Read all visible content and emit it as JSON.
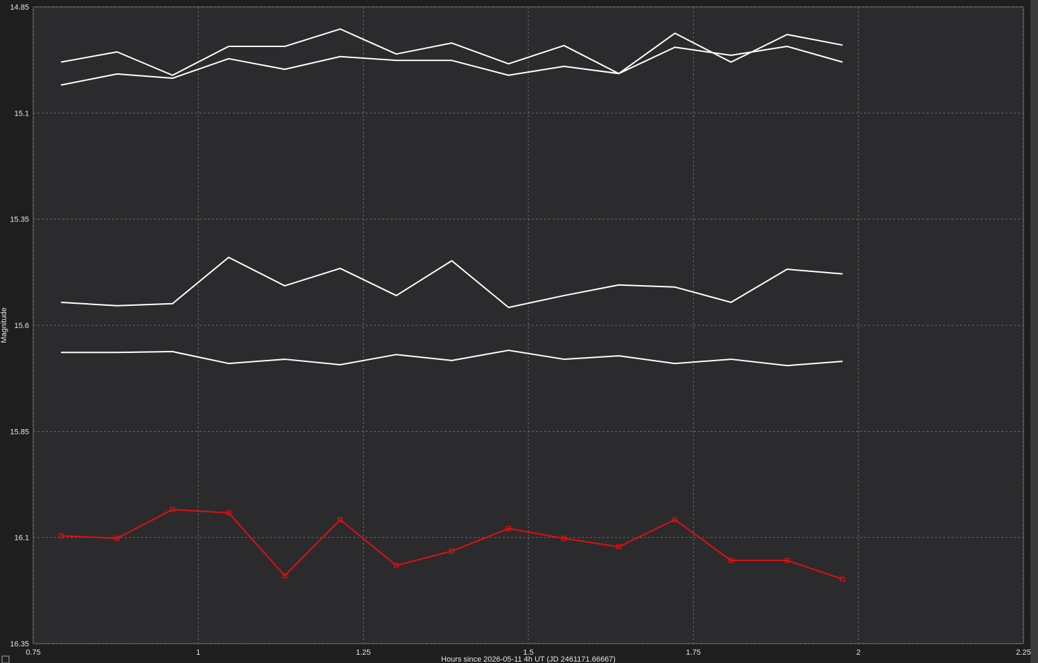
{
  "chart_data": {
    "type": "line",
    "x_label": "Hours since 2026-05-11 4h UT (JD 2461171.66667)",
    "y_label": "Magnitude",
    "x": [
      0.792,
      0.877,
      0.961,
      1.046,
      1.131,
      1.215,
      1.3,
      1.384,
      1.47,
      1.554,
      1.637,
      1.722,
      1.807,
      1.892,
      1.976
    ],
    "series": [
      {
        "color": "#ffffff",
        "values": [
          14.98,
          14.956,
          15.011,
          14.943,
          14.943,
          14.902,
          14.961,
          14.935,
          14.984,
          14.941,
          15.007,
          14.912,
          14.98,
          14.915,
          14.94
        ]
      },
      {
        "color": "#ffffff",
        "values": [
          15.034,
          15.008,
          15.018,
          14.972,
          14.997,
          14.967,
          14.976,
          14.976,
          15.011,
          14.99,
          15.007,
          14.945,
          14.964,
          14.943,
          14.98
        ]
      },
      {
        "color": "#ffffff",
        "values": [
          15.546,
          15.554,
          15.549,
          15.44,
          15.507,
          15.466,
          15.53,
          15.448,
          15.558,
          15.53,
          15.505,
          15.51,
          15.546,
          15.468,
          15.479
        ]
      },
      {
        "color": "#ffffff",
        "values": [
          15.664,
          15.664,
          15.662,
          15.69,
          15.68,
          15.693,
          15.669,
          15.683,
          15.659,
          15.68,
          15.672,
          15.69,
          15.68,
          15.695,
          15.685
        ]
      },
      {
        "color": "#e01010",
        "markers": true,
        "values": [
          16.096,
          16.102,
          16.034,
          16.042,
          16.19,
          16.058,
          16.166,
          16.132,
          16.079,
          16.102,
          16.122,
          16.058,
          16.154,
          16.154,
          16.198
        ]
      }
    ],
    "xlim": [
      0.75,
      2.25
    ],
    "xticks": [
      0.75,
      1,
      1.25,
      1.5,
      1.75,
      2,
      2.25
    ],
    "ylim": [
      14.85,
      16.35
    ],
    "yticks": [
      14.85,
      15.1,
      15.35,
      15.6,
      15.85,
      16.1,
      16.35
    ],
    "y_inverted": true,
    "grid": true
  }
}
